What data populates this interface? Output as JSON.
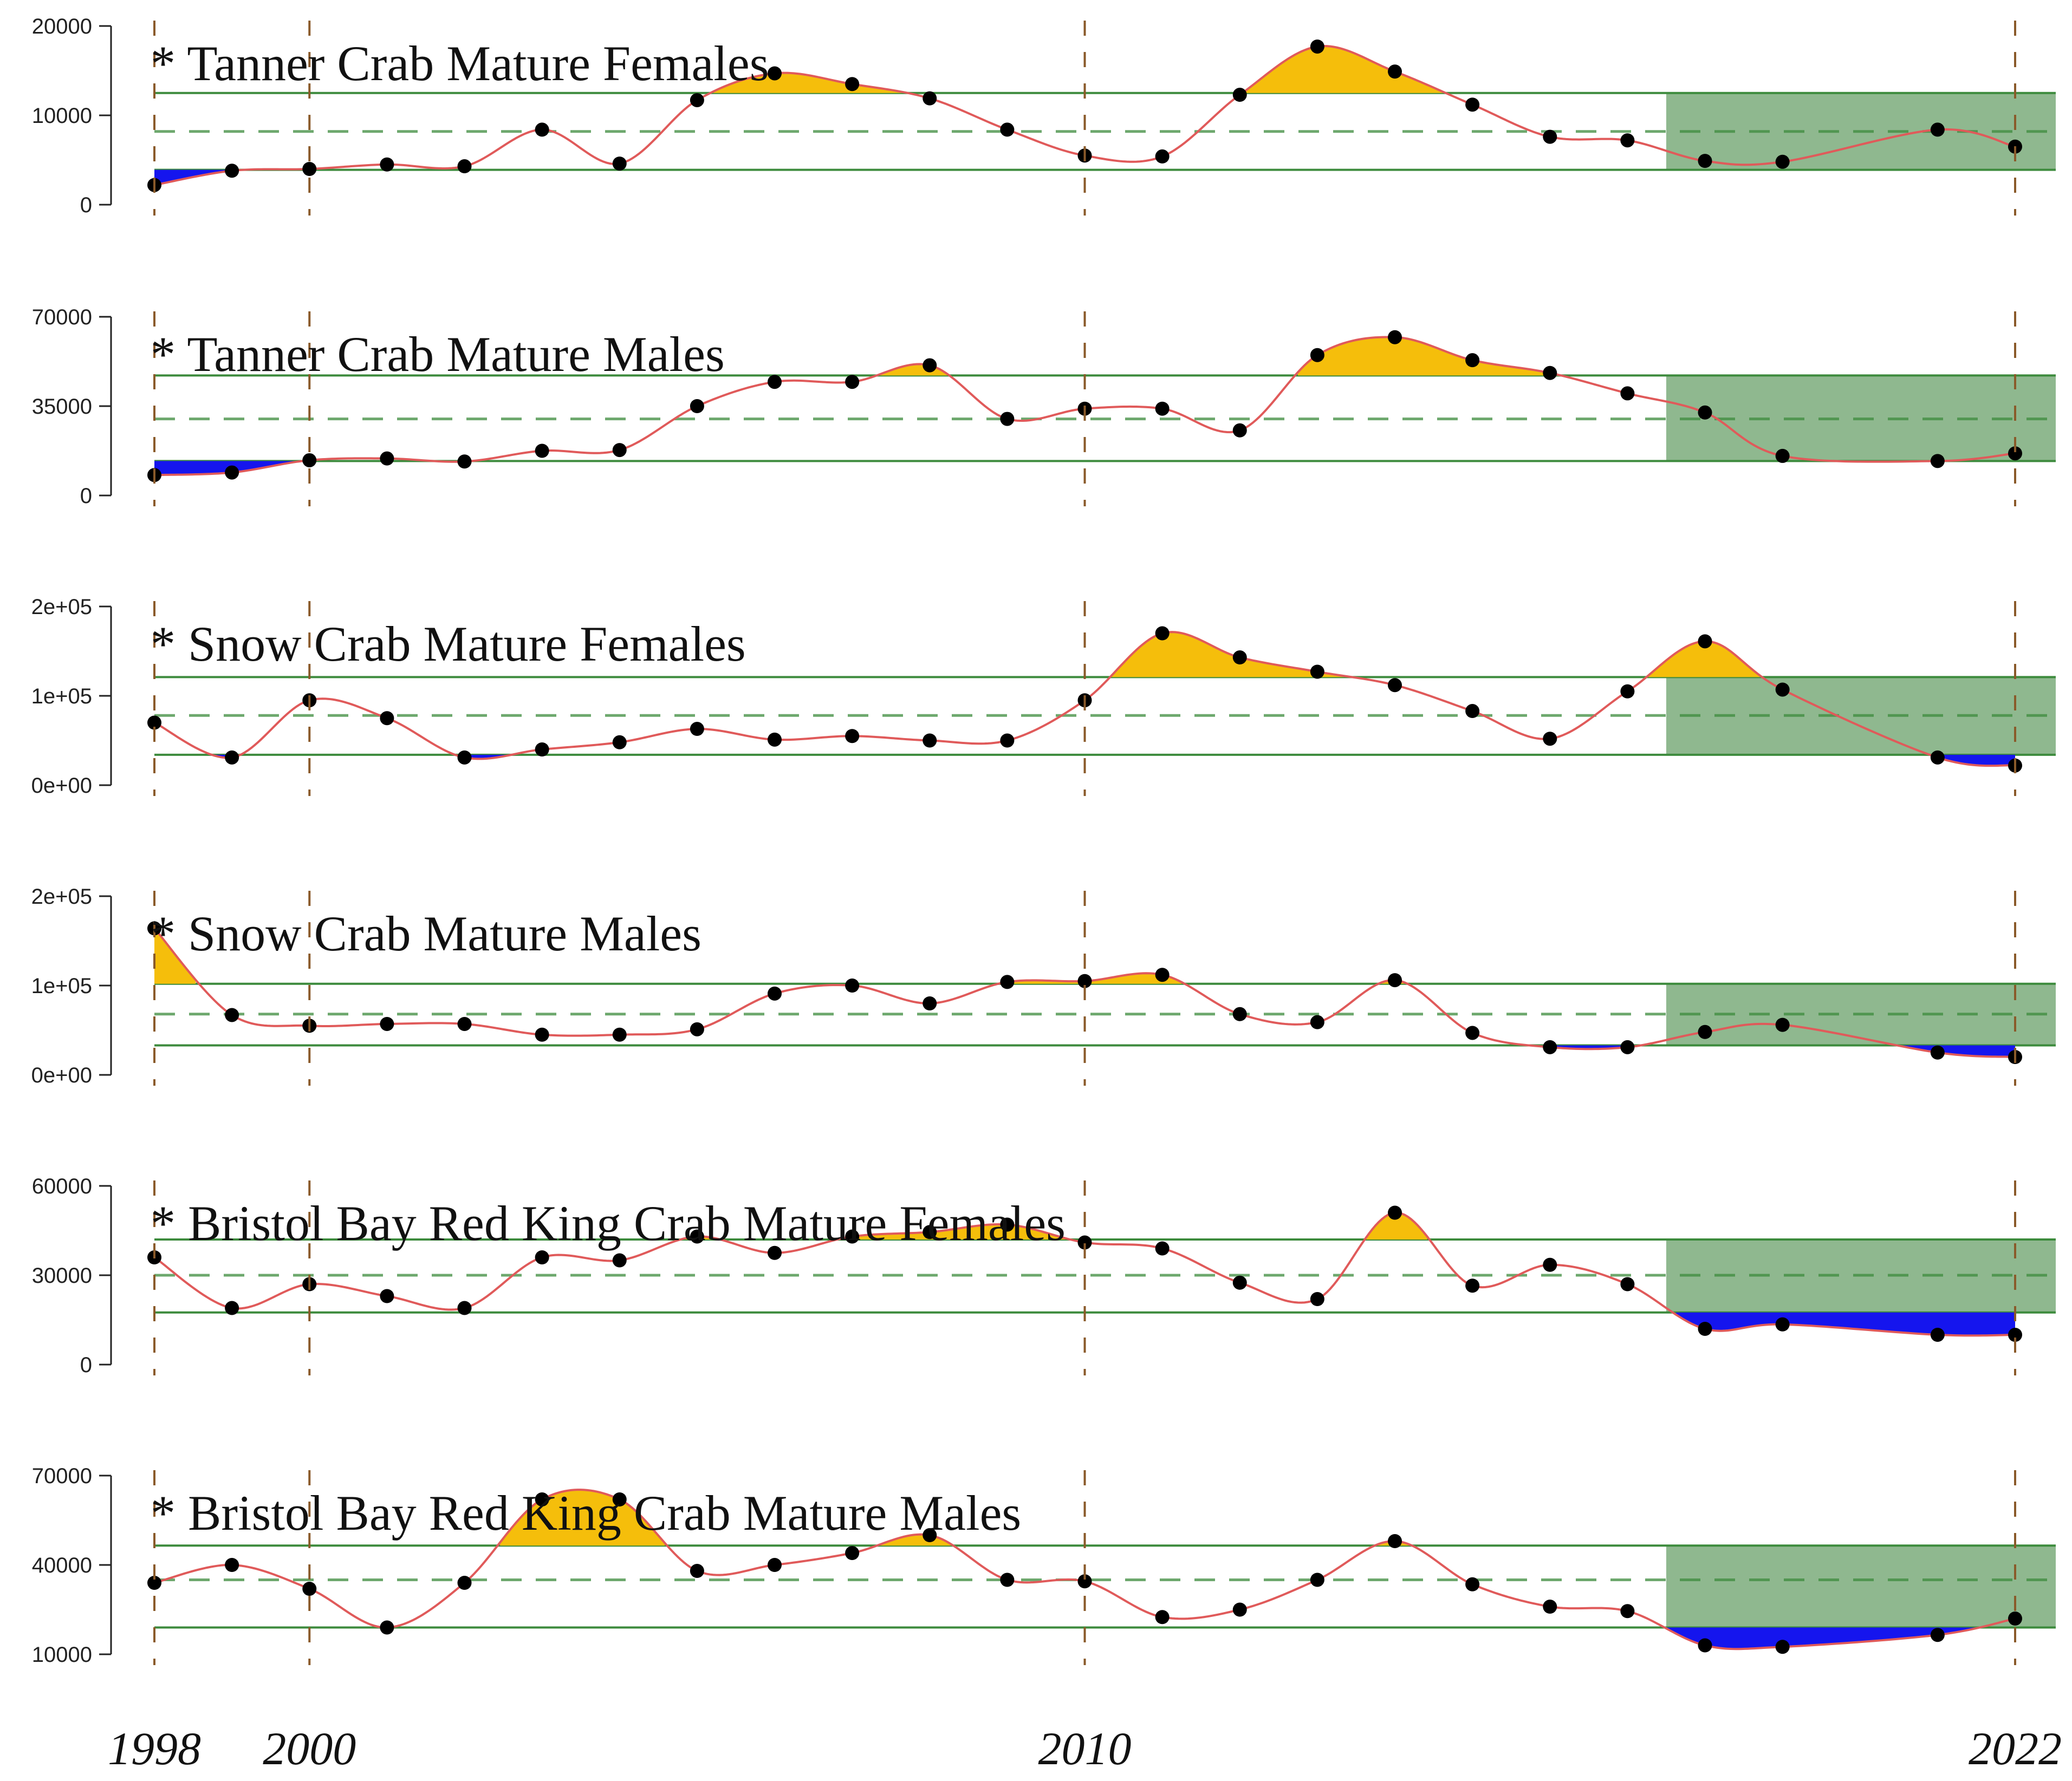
{
  "chart_data": {
    "type": "line",
    "x_ticks": [
      "1998",
      "2000",
      "2010",
      "2022"
    ],
    "x_tick_values": [
      1998,
      2000,
      2010,
      2022
    ],
    "xlim": [
      1998,
      2022
    ],
    "colors": {
      "line": "#e05a5a",
      "point": "#000000",
      "above": "#f5be0b",
      "below": "#1515ee",
      "threshold": "#3d8b3d",
      "recent_window": "#8fb88f",
      "year_marker": "#8a5a2a"
    },
    "recent_window_years": [
      2017.5,
      2022.5
    ],
    "panels": [
      {
        "title": "* Tanner Crab Mature Females",
        "ylim": [
          0,
          20000
        ],
        "ytick_values": [
          0,
          10000,
          20000
        ],
        "ytick_labels": [
          "0",
          "10000",
          "20000"
        ],
        "mean": 8200,
        "upper": 12500,
        "lower": 3900,
        "x": [
          1998,
          1999,
          2000,
          2001,
          2002,
          2003,
          2004,
          2005,
          2006,
          2007,
          2008,
          2009,
          2010,
          2011,
          2012,
          2013,
          2014,
          2015,
          2016,
          2017,
          2018,
          2019,
          2021,
          2022
        ],
        "y": [
          2200,
          3800,
          4000,
          4500,
          4300,
          8400,
          4600,
          11700,
          14700,
          13500,
          11900,
          8400,
          5500,
          5400,
          12300,
          17700,
          14900,
          11200,
          7600,
          7200,
          4900,
          4800,
          8400,
          6500
        ]
      },
      {
        "title": "* Tanner Crab Mature Males",
        "ylim": [
          0,
          70000
        ],
        "ytick_values": [
          0,
          35000,
          70000
        ],
        "ytick_labels": [
          "0",
          "35000",
          "70000"
        ],
        "mean": 30000,
        "upper": 47000,
        "lower": 13500,
        "x": [
          1998,
          1999,
          2000,
          2001,
          2002,
          2003,
          2004,
          2005,
          2006,
          2007,
          2008,
          2009,
          2010,
          2011,
          2012,
          2013,
          2014,
          2015,
          2016,
          2017,
          2018,
          2019,
          2021,
          2022
        ],
        "y": [
          8000,
          9000,
          13800,
          14500,
          13300,
          17500,
          17800,
          35000,
          44500,
          44500,
          51000,
          30000,
          34000,
          34000,
          25500,
          55000,
          62000,
          53000,
          48000,
          40000,
          32500,
          15500,
          13500,
          16500
        ]
      },
      {
        "title": "* Snow Crab Mature Females",
        "ylim": [
          0,
          200000
        ],
        "ytick_values": [
          0,
          100000,
          200000
        ],
        "ytick_labels": [
          "0e+00",
          "1e+05",
          "2e+05"
        ],
        "mean": 78000,
        "upper": 121000,
        "lower": 34000,
        "x": [
          1998,
          1999,
          2000,
          2001,
          2002,
          2003,
          2004,
          2005,
          2006,
          2007,
          2008,
          2009,
          2010,
          2011,
          2012,
          2013,
          2014,
          2015,
          2016,
          2017,
          2018,
          2019,
          2021,
          2022
        ],
        "y": [
          70000,
          31000,
          95000,
          75000,
          31000,
          40000,
          48000,
          63000,
          51000,
          55000,
          50000,
          50000,
          95000,
          170000,
          143000,
          127000,
          112000,
          83000,
          52000,
          105000,
          161000,
          107000,
          31000,
          22000
        ]
      },
      {
        "title": "* Snow Crab Mature Males",
        "ylim": [
          0,
          200000
        ],
        "ytick_values": [
          0,
          100000,
          200000
        ],
        "ytick_labels": [
          "0e+00",
          "1e+05",
          "2e+05"
        ],
        "mean": 68000,
        "upper": 102000,
        "lower": 33000,
        "x": [
          1998,
          1999,
          2000,
          2001,
          2002,
          2003,
          2004,
          2005,
          2006,
          2007,
          2008,
          2009,
          2010,
          2011,
          2012,
          2013,
          2014,
          2015,
          2016,
          2017,
          2018,
          2019,
          2021,
          2022
        ],
        "y": [
          164000,
          67000,
          55000,
          57000,
          57000,
          45000,
          45000,
          51000,
          91000,
          100000,
          80000,
          104000,
          105000,
          112000,
          68000,
          59000,
          106000,
          47000,
          31000,
          31000,
          48000,
          56000,
          25000,
          20000
        ]
      },
      {
        "title": "* Bristol Bay Red King Crab Mature Females",
        "ylim": [
          0,
          60000
        ],
        "ytick_values": [
          0,
          30000,
          60000
        ],
        "ytick_labels": [
          "0",
          "30000",
          "60000"
        ],
        "mean": 30000,
        "upper": 42000,
        "lower": 17500,
        "x": [
          1998,
          1999,
          2000,
          2001,
          2002,
          2003,
          2004,
          2005,
          2006,
          2007,
          2008,
          2009,
          2010,
          2011,
          2012,
          2013,
          2014,
          2015,
          2016,
          2017,
          2018,
          2019,
          2021,
          2022
        ],
        "y": [
          36000,
          19000,
          27000,
          23000,
          19000,
          36000,
          35000,
          43000,
          37500,
          43000,
          44500,
          47000,
          41000,
          39000,
          27500,
          22000,
          51000,
          26500,
          33500,
          27000,
          12000,
          13500,
          10000,
          10000
        ]
      },
      {
        "title": "* Bristol Bay Red King Crab Mature Males",
        "ylim": [
          10000,
          70000
        ],
        "ytick_values": [
          10000,
          40000,
          70000
        ],
        "ytick_labels": [
          "10000",
          "40000",
          "70000"
        ],
        "mean": 35000,
        "upper": 46500,
        "lower": 19000,
        "x": [
          1998,
          1999,
          2000,
          2001,
          2002,
          2003,
          2004,
          2005,
          2006,
          2007,
          2008,
          2009,
          2010,
          2011,
          2012,
          2013,
          2014,
          2015,
          2016,
          2017,
          2018,
          2019,
          2021,
          2022
        ],
        "y": [
          34000,
          40000,
          32000,
          19000,
          34000,
          62000,
          62000,
          38000,
          40000,
          44000,
          50000,
          35000,
          34500,
          22500,
          25000,
          35000,
          48000,
          33500,
          26000,
          24500,
          13000,
          12500,
          16500,
          22000
        ]
      }
    ]
  }
}
